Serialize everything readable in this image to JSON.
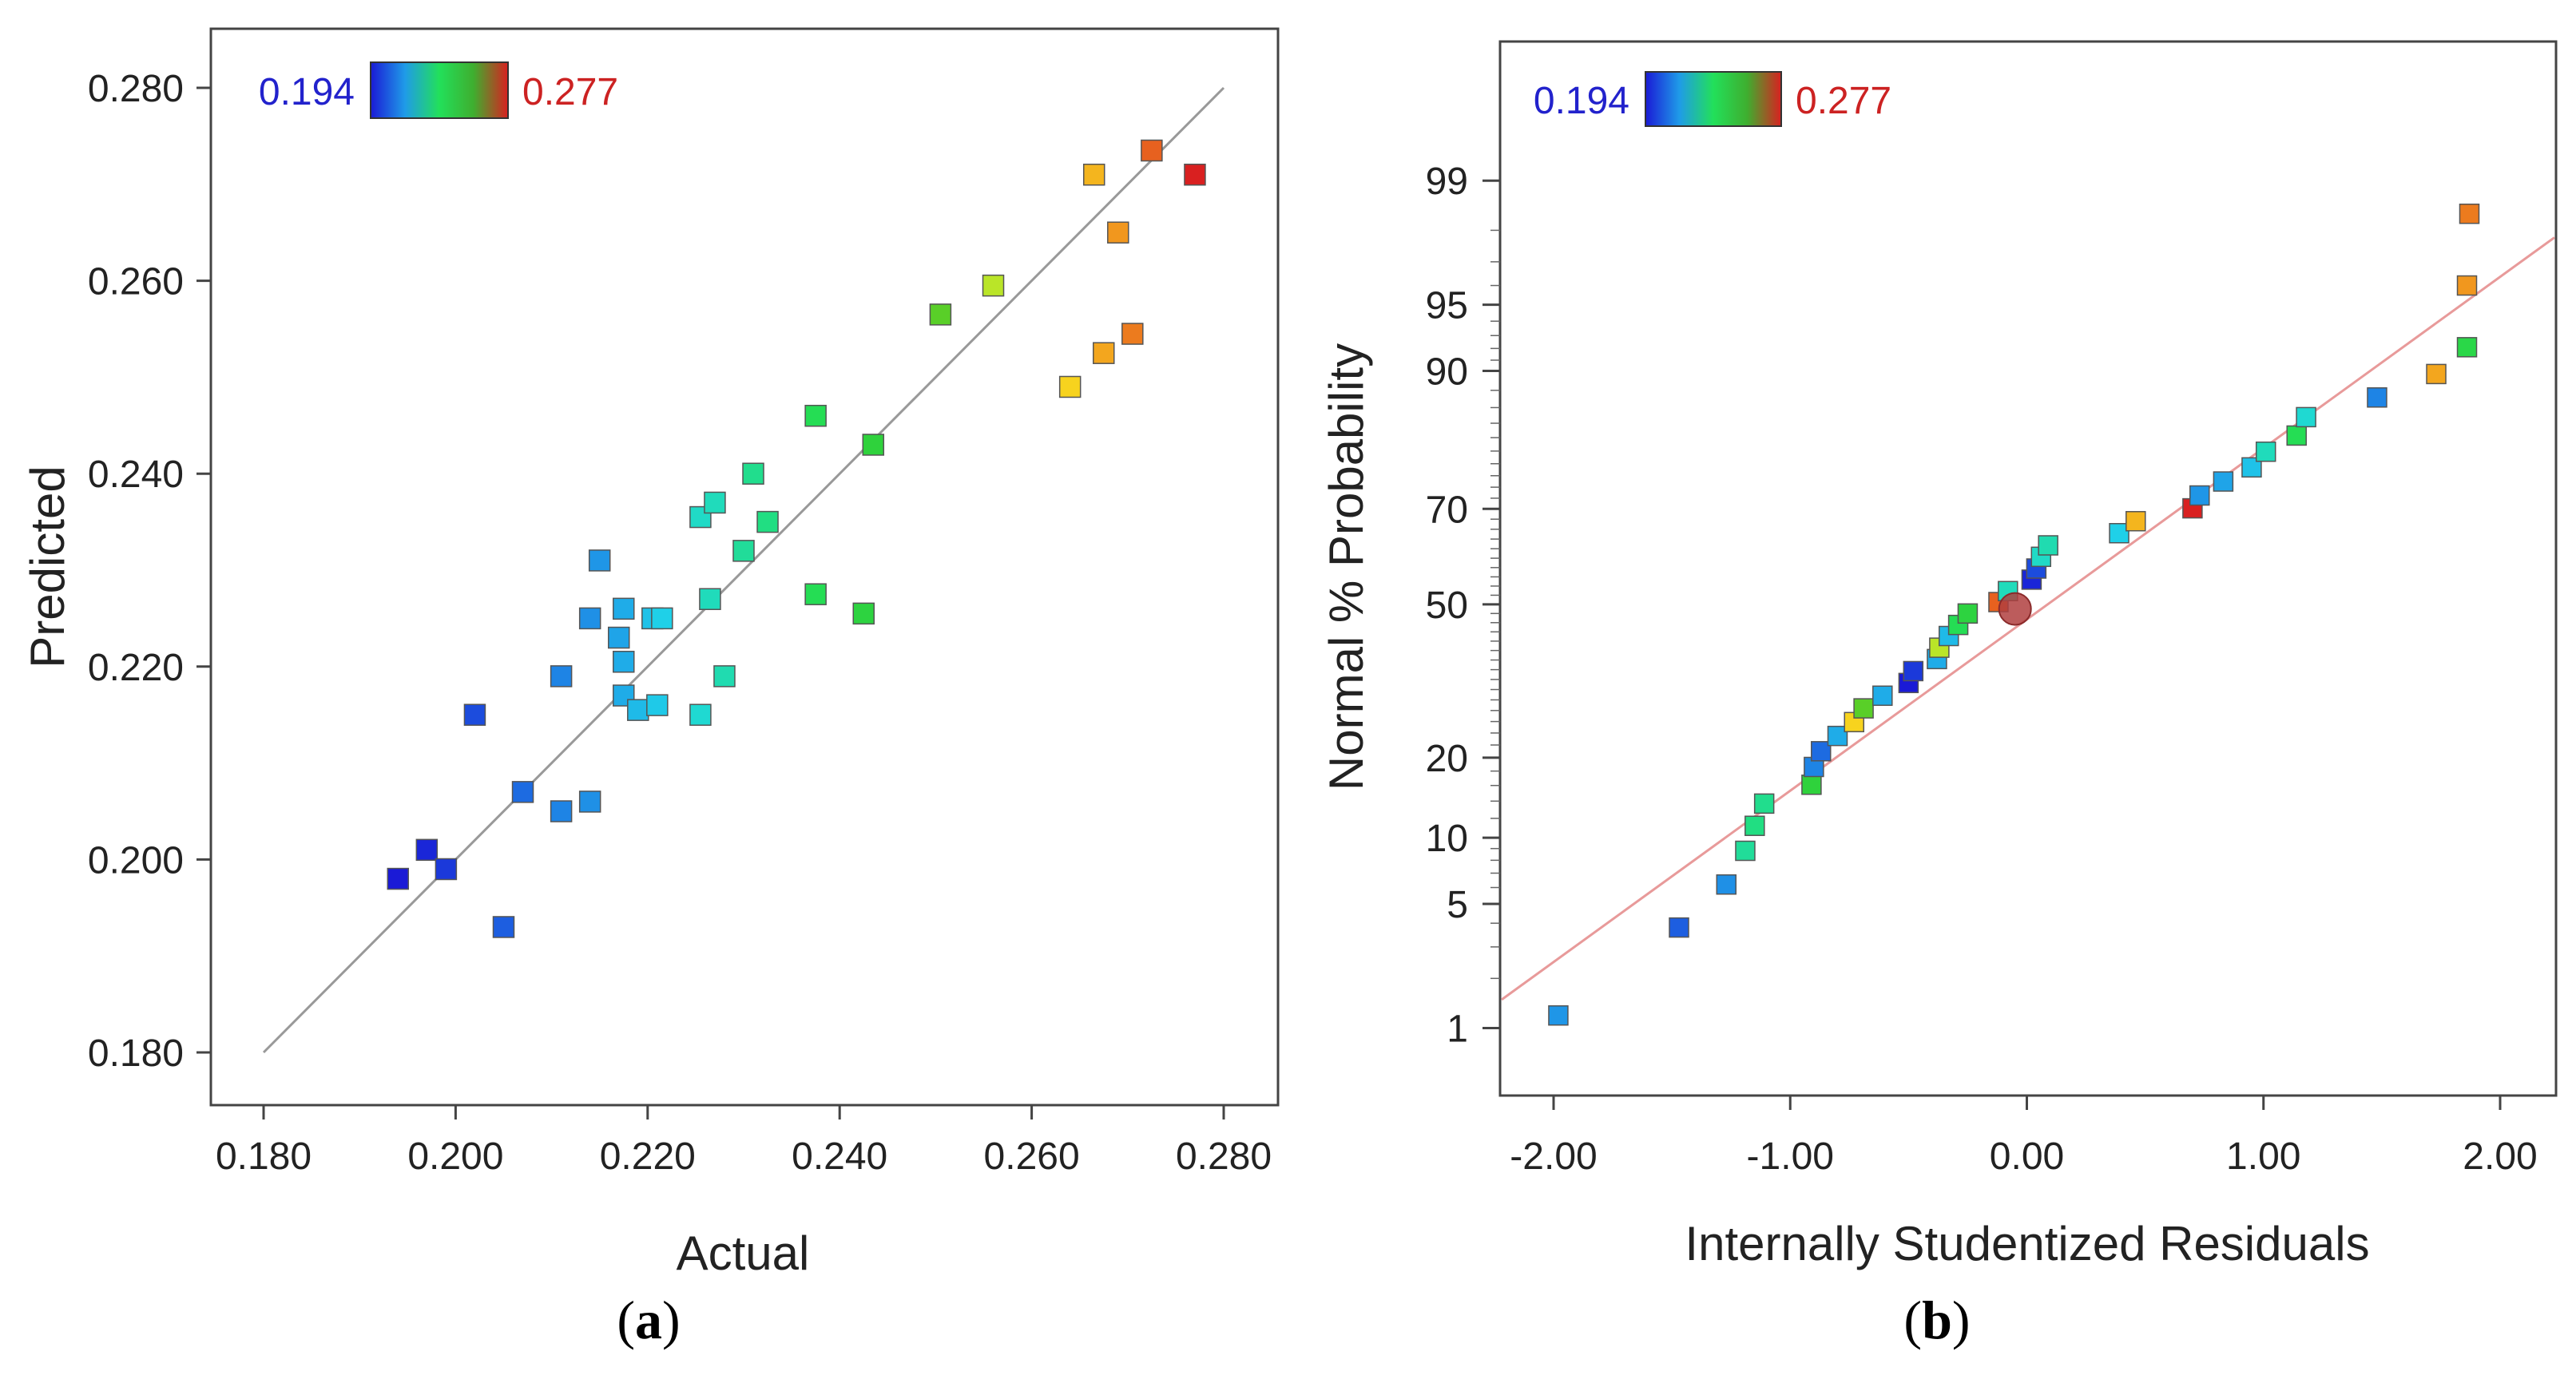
{
  "color_scale": {
    "min_label": "0.194",
    "max_label": "0.277",
    "min": 0.194,
    "max": 0.277,
    "min_color": "#1a1ad6",
    "max_color": "#d92020"
  },
  "chart_data": [
    {
      "panel_label_parts": [
        "(",
        "a",
        ")"
      ],
      "type": "scatter",
      "xlabel": "Actual",
      "ylabel": "Predicted",
      "xlim": [
        0.18,
        0.28
      ],
      "ylim": [
        0.18,
        0.28
      ],
      "xticks": [
        "0.180",
        "0.200",
        "0.220",
        "0.240",
        "0.260",
        "0.280"
      ],
      "yticks": [
        "0.180",
        "0.200",
        "0.220",
        "0.240",
        "0.260",
        "0.280"
      ],
      "reference_line": {
        "from": [
          0.18,
          0.18
        ],
        "to": [
          0.28,
          0.28
        ],
        "color": "#999999"
      },
      "marker": "square",
      "points": [
        {
          "x": 0.194,
          "y": 0.198,
          "c": 0.194
        },
        {
          "x": 0.197,
          "y": 0.201,
          "c": 0.196
        },
        {
          "x": 0.199,
          "y": 0.199,
          "c": 0.199
        },
        {
          "x": 0.202,
          "y": 0.215,
          "c": 0.202
        },
        {
          "x": 0.205,
          "y": 0.193,
          "c": 0.205
        },
        {
          "x": 0.207,
          "y": 0.207,
          "c": 0.207
        },
        {
          "x": 0.211,
          "y": 0.205,
          "c": 0.211
        },
        {
          "x": 0.211,
          "y": 0.219,
          "c": 0.211
        },
        {
          "x": 0.214,
          "y": 0.206,
          "c": 0.213
        },
        {
          "x": 0.214,
          "y": 0.225,
          "c": 0.213
        },
        {
          "x": 0.215,
          "y": 0.231,
          "c": 0.214
        },
        {
          "x": 0.217,
          "y": 0.223,
          "c": 0.216
        },
        {
          "x": 0.2175,
          "y": 0.226,
          "c": 0.217
        },
        {
          "x": 0.2175,
          "y": 0.2205,
          "c": 0.217
        },
        {
          "x": 0.2175,
          "y": 0.217,
          "c": 0.217
        },
        {
          "x": 0.219,
          "y": 0.2155,
          "c": 0.219
        },
        {
          "x": 0.2205,
          "y": 0.225,
          "c": 0.22
        },
        {
          "x": 0.221,
          "y": 0.216,
          "c": 0.221
        },
        {
          "x": 0.2215,
          "y": 0.225,
          "c": 0.222
        },
        {
          "x": 0.2255,
          "y": 0.215,
          "c": 0.225
        },
        {
          "x": 0.2255,
          "y": 0.2355,
          "c": 0.226
        },
        {
          "x": 0.2265,
          "y": 0.227,
          "c": 0.227
        },
        {
          "x": 0.227,
          "y": 0.237,
          "c": 0.227
        },
        {
          "x": 0.228,
          "y": 0.219,
          "c": 0.228
        },
        {
          "x": 0.23,
          "y": 0.232,
          "c": 0.23
        },
        {
          "x": 0.231,
          "y": 0.24,
          "c": 0.231
        },
        {
          "x": 0.2325,
          "y": 0.235,
          "c": 0.232
        },
        {
          "x": 0.2375,
          "y": 0.246,
          "c": 0.237
        },
        {
          "x": 0.2375,
          "y": 0.2275,
          "c": 0.237
        },
        {
          "x": 0.2425,
          "y": 0.2255,
          "c": 0.242
        },
        {
          "x": 0.2435,
          "y": 0.243,
          "c": 0.243
        },
        {
          "x": 0.2505,
          "y": 0.2565,
          "c": 0.25
        },
        {
          "x": 0.256,
          "y": 0.2595,
          "c": 0.256
        },
        {
          "x": 0.264,
          "y": 0.249,
          "c": 0.264
        },
        {
          "x": 0.2665,
          "y": 0.271,
          "c": 0.266
        },
        {
          "x": 0.2675,
          "y": 0.2525,
          "c": 0.267
        },
        {
          "x": 0.269,
          "y": 0.265,
          "c": 0.268
        },
        {
          "x": 0.2705,
          "y": 0.2545,
          "c": 0.27
        },
        {
          "x": 0.2725,
          "y": 0.2735,
          "c": 0.272
        },
        {
          "x": 0.277,
          "y": 0.271,
          "c": 0.277
        }
      ]
    },
    {
      "panel_label_parts": [
        "(",
        "b",
        ")"
      ],
      "type": "scatter",
      "xlabel": "Internally Studentized Residuals",
      "ylabel": "Normal % Probability",
      "y_scale": "normal-probability",
      "xlim": [
        -2.2,
        2.2
      ],
      "ylim": [
        0.35,
        99.9
      ],
      "xticks": [
        "-2.00",
        "-1.00",
        "0.00",
        "1.00",
        "2.00"
      ],
      "yticks": [
        "1",
        "5",
        "10",
        "20",
        "50",
        "70",
        "90",
        "95",
        "99"
      ],
      "reference_line": {
        "from": [
          -2.2,
          1.5
        ],
        "to": [
          2.2,
          97.8
        ],
        "color": "#e89a9a"
      },
      "marker": "square",
      "highlight_point": {
        "x": -0.05,
        "y": 49,
        "color": "#b04040"
      },
      "points": [
        {
          "x": -1.98,
          "y": 1.2,
          "c": 0.214
        },
        {
          "x": -1.47,
          "y": 3.8,
          "c": 0.205
        },
        {
          "x": -1.27,
          "y": 6.2,
          "c": 0.213
        },
        {
          "x": -1.19,
          "y": 8.8,
          "c": 0.23
        },
        {
          "x": -1.15,
          "y": 11.2,
          "c": 0.232
        },
        {
          "x": -1.11,
          "y": 13.7,
          "c": 0.231
        },
        {
          "x": -0.91,
          "y": 16.1,
          "c": 0.243
        },
        {
          "x": -0.9,
          "y": 18.6,
          "c": 0.211
        },
        {
          "x": -0.87,
          "y": 21.0,
          "c": 0.207
        },
        {
          "x": -0.8,
          "y": 23.5,
          "c": 0.217
        },
        {
          "x": -0.73,
          "y": 25.9,
          "c": 0.264
        },
        {
          "x": -0.69,
          "y": 28.4,
          "c": 0.25
        },
        {
          "x": -0.61,
          "y": 30.8,
          "c": 0.217
        },
        {
          "x": -0.5,
          "y": 33.3,
          "c": 0.194
        },
        {
          "x": -0.48,
          "y": 35.7,
          "c": 0.199
        },
        {
          "x": -0.38,
          "y": 38.2,
          "c": 0.217
        },
        {
          "x": -0.37,
          "y": 40.6,
          "c": 0.256
        },
        {
          "x": -0.33,
          "y": 43.1,
          "c": 0.219
        },
        {
          "x": -0.29,
          "y": 45.5,
          "c": 0.237
        },
        {
          "x": -0.25,
          "y": 48.0,
          "c": 0.242
        },
        {
          "x": -0.12,
          "y": 50.5,
          "c": 0.272
        },
        {
          "x": -0.08,
          "y": 52.9,
          "c": 0.227
        },
        {
          "x": 0.02,
          "y": 55.4,
          "c": 0.196
        },
        {
          "x": 0.04,
          "y": 57.8,
          "c": 0.202
        },
        {
          "x": 0.06,
          "y": 60.3,
          "c": 0.226
        },
        {
          "x": 0.09,
          "y": 62.7,
          "c": 0.228
        },
        {
          "x": 0.39,
          "y": 65.2,
          "c": 0.222
        },
        {
          "x": 0.46,
          "y": 67.6,
          "c": 0.266
        },
        {
          "x": 0.7,
          "y": 70.1,
          "c": 0.277
        },
        {
          "x": 0.73,
          "y": 72.5,
          "c": 0.214
        },
        {
          "x": 0.83,
          "y": 75.0,
          "c": 0.216
        },
        {
          "x": 0.95,
          "y": 77.4,
          "c": 0.22
        },
        {
          "x": 1.01,
          "y": 79.9,
          "c": 0.227
        },
        {
          "x": 1.14,
          "y": 82.3,
          "c": 0.237
        },
        {
          "x": 1.18,
          "y": 84.8,
          "c": 0.225
        },
        {
          "x": 1.48,
          "y": 87.2,
          "c": 0.211
        },
        {
          "x": 1.73,
          "y": 89.7,
          "c": 0.267
        },
        {
          "x": 1.86,
          "y": 92.1,
          "c": 0.24
        },
        {
          "x": 1.86,
          "y": 96.0,
          "c": 0.268
        },
        {
          "x": 1.87,
          "y": 98.4,
          "c": 0.27
        }
      ]
    }
  ]
}
